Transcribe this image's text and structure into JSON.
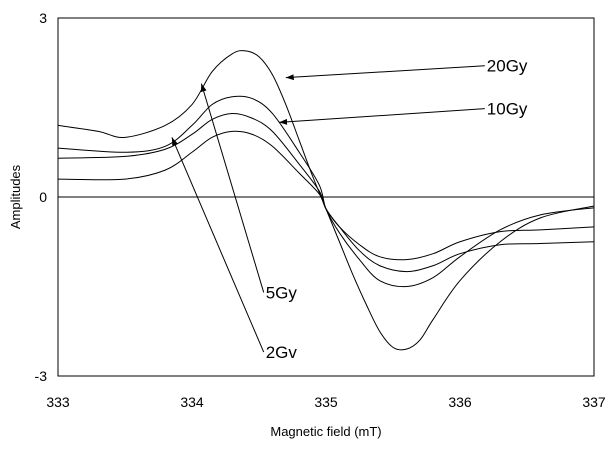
{
  "chart_data": {
    "type": "line",
    "title": "",
    "xlabel": "Magnetic field (mT)",
    "ylabel": "Amplitudes",
    "xlim": [
      333,
      337
    ],
    "ylim": [
      -3,
      3
    ],
    "xticks": [
      "333",
      "334",
      "335",
      "336",
      "337"
    ],
    "yticks": [
      "3",
      "0",
      "-3"
    ],
    "grid": false,
    "zero_line": true,
    "series": [
      {
        "name": "20Gy",
        "x": [
          333.0,
          333.3,
          333.5,
          333.8,
          334.0,
          334.15,
          334.3,
          334.4,
          334.5,
          334.6,
          334.7,
          334.8,
          334.9,
          335.0,
          335.1,
          335.2,
          335.3,
          335.4,
          335.5,
          335.6,
          335.7,
          335.8,
          336.0,
          336.3,
          336.6,
          337.0
        ],
        "y": [
          1.2,
          1.1,
          1.0,
          1.2,
          1.55,
          2.1,
          2.4,
          2.45,
          2.35,
          2.05,
          1.55,
          0.95,
          0.35,
          -0.2,
          -0.75,
          -1.3,
          -1.8,
          -2.25,
          -2.52,
          -2.55,
          -2.4,
          -2.05,
          -1.4,
          -0.75,
          -0.35,
          -0.15
        ]
      },
      {
        "name": "10Gy",
        "x": [
          333.0,
          333.5,
          333.8,
          334.0,
          334.15,
          334.3,
          334.45,
          334.6,
          334.8,
          334.95,
          335.0,
          335.1,
          335.25,
          335.4,
          335.6,
          335.8,
          336.0,
          336.3,
          336.6,
          337.0
        ],
        "y": [
          0.82,
          0.75,
          0.85,
          1.2,
          1.55,
          1.68,
          1.65,
          1.4,
          0.75,
          0.2,
          -0.2,
          -0.6,
          -1.05,
          -1.4,
          -1.5,
          -1.35,
          -1.0,
          -0.55,
          -0.3,
          -0.18
        ]
      },
      {
        "name": "5Gy",
        "x": [
          333.0,
          333.5,
          333.8,
          334.0,
          334.15,
          334.3,
          334.45,
          334.6,
          334.8,
          334.95,
          335.0,
          335.1,
          335.25,
          335.4,
          335.6,
          335.8,
          336.0,
          336.3,
          336.6,
          337.0
        ],
        "y": [
          0.65,
          0.68,
          0.8,
          1.05,
          1.3,
          1.4,
          1.32,
          1.1,
          0.55,
          0.1,
          -0.2,
          -0.5,
          -0.9,
          -1.15,
          -1.25,
          -1.15,
          -0.95,
          -0.8,
          -0.78,
          -0.75
        ]
      },
      {
        "name": "2Gy",
        "x": [
          333.0,
          333.5,
          333.8,
          334.0,
          334.15,
          334.3,
          334.45,
          334.6,
          334.8,
          334.95,
          335.0,
          335.1,
          335.25,
          335.4,
          335.6,
          335.8,
          336.0,
          336.3,
          336.6,
          337.0
        ],
        "y": [
          0.3,
          0.3,
          0.45,
          0.75,
          1.0,
          1.1,
          1.05,
          0.85,
          0.4,
          0.05,
          -0.2,
          -0.5,
          -0.8,
          -1.0,
          -1.05,
          -0.95,
          -0.75,
          -0.58,
          -0.55,
          -0.5
        ]
      }
    ],
    "annotations": [
      {
        "text": "20Gy",
        "target_series": "20Gy",
        "target": [
          334.7,
          2.0
        ],
        "label_at": [
          336.2,
          2.1
        ]
      },
      {
        "text": "10Gy",
        "target_series": "10Gy",
        "target": [
          334.65,
          1.25
        ],
        "label_at": [
          336.2,
          1.38
        ]
      },
      {
        "text": "5Gy",
        "target_series": "5Gy",
        "target": [
          334.07,
          1.9
        ],
        "label_at": [
          334.55,
          -1.7
        ]
      },
      {
        "text": "2Gv",
        "target_series": "2Gy",
        "target": [
          333.85,
          1.0
        ],
        "label_at": [
          334.55,
          -2.7
        ]
      }
    ]
  }
}
